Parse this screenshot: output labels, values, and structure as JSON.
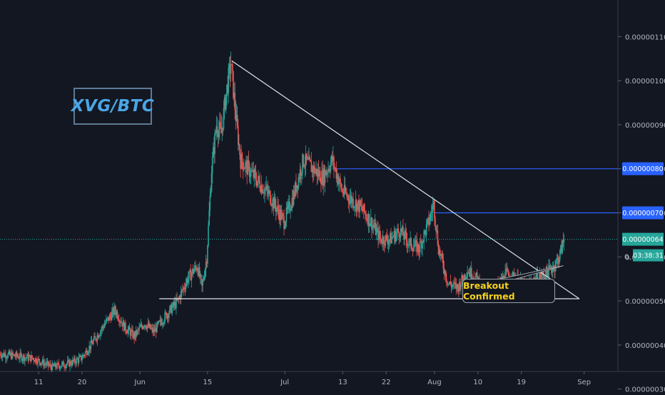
{
  "chart_data": {
    "type": "candlestick",
    "title": "XVG/BTC",
    "y_ticks": [
      "0.00000110",
      "0.00000100",
      "0.00000090",
      "0.00000080",
      "0.00000070",
      "0.00000060",
      "0.00000050",
      "0.00000040",
      "0.00000030"
    ],
    "y_tick_values": [
      1.1,
      1.0,
      0.9,
      0.8,
      0.7,
      0.6,
      0.5,
      0.4,
      0.3
    ],
    "y_unit": "1e-6 BTC",
    "ylim": [
      0.293,
      1.183
    ],
    "x_ticks": [
      "11",
      "20",
      "Jun",
      "15",
      "Jul",
      "13",
      "22",
      "Aug",
      "10",
      "19",
      "Sep"
    ],
    "x_tick_dates": [
      "May 11",
      "May 20",
      "Jun 1",
      "Jun 15",
      "Jul 1",
      "Jul 13",
      "Jul 22",
      "Aug 1",
      "Aug 10",
      "Aug 19",
      "Sep 1"
    ],
    "x_range": [
      "May 3",
      "Sep 8"
    ],
    "price_path": [
      [
        "May 3",
        0.38
      ],
      [
        "May 10",
        0.37
      ],
      [
        "May 14",
        0.35
      ],
      [
        "May 18",
        0.36
      ],
      [
        "May 20",
        0.37
      ],
      [
        "May 22",
        0.4
      ],
      [
        "May 25",
        0.45
      ],
      [
        "May 27",
        0.48
      ],
      [
        "May 29",
        0.44
      ],
      [
        "May 31",
        0.42
      ],
      [
        "Jun 2",
        0.45
      ],
      [
        "Jun 4",
        0.43
      ],
      [
        "Jun 6",
        0.46
      ],
      [
        "Jun 9",
        0.5
      ],
      [
        "Jun 11",
        0.55
      ],
      [
        "Jun 13",
        0.58
      ],
      [
        "Jun 14",
        0.53
      ],
      [
        "Jun 15",
        0.6
      ],
      [
        "Jun 16",
        0.8
      ],
      [
        "Jun 17",
        0.9
      ],
      [
        "Jun 18",
        0.88
      ],
      [
        "Jun 19",
        0.97
      ],
      [
        "Jun 20",
        1.04
      ],
      [
        "Jun 21",
        0.92
      ],
      [
        "Jun 22",
        0.82
      ],
      [
        "Jun 25",
        0.78
      ],
      [
        "Jun 28",
        0.74
      ],
      [
        "Jul 1",
        0.68
      ],
      [
        "Jul 3",
        0.74
      ],
      [
        "Jul 5",
        0.82
      ],
      [
        "Jul 7",
        0.8
      ],
      [
        "Jul 9",
        0.78
      ],
      [
        "Jul 11",
        0.82
      ],
      [
        "Jul 13",
        0.75
      ],
      [
        "Jul 15",
        0.73
      ],
      [
        "Jul 17",
        0.71
      ],
      [
        "Jul 19",
        0.68
      ],
      [
        "Jul 21",
        0.64
      ],
      [
        "Jul 23",
        0.64
      ],
      [
        "Jul 25",
        0.66
      ],
      [
        "Jul 27",
        0.63
      ],
      [
        "Jul 29",
        0.62
      ],
      [
        "Jul 31",
        0.68
      ],
      [
        "Aug 1",
        0.72
      ],
      [
        "Aug 2",
        0.62
      ],
      [
        "Aug 4",
        0.54
      ],
      [
        "Aug 6",
        0.53
      ],
      [
        "Aug 8",
        0.57
      ],
      [
        "Aug 10",
        0.55
      ],
      [
        "Aug 12",
        0.51
      ],
      [
        "Aug 14",
        0.53
      ],
      [
        "Aug 16",
        0.56
      ],
      [
        "Aug 18",
        0.55
      ],
      [
        "Aug 20",
        0.53
      ],
      [
        "Aug 22",
        0.55
      ],
      [
        "Aug 24",
        0.56
      ],
      [
        "Aug 26",
        0.58
      ],
      [
        "Aug 27",
        0.6
      ],
      [
        "Aug 28",
        0.64
      ]
    ],
    "current_price": "0.00000064",
    "current_price_value": 0.64,
    "countdown": "03:38:31",
    "countdown_partial_label": "0.",
    "horizontal_levels": [
      {
        "label": "0.00000080",
        "value": 0.8,
        "from": "Jul 11",
        "color": "#2962ff"
      },
      {
        "label": "0.00000070",
        "value": 0.7,
        "from": "Aug 1",
        "color": "#2962ff"
      }
    ],
    "trendlines": [
      {
        "name": "descending-resistance",
        "from": [
          "Jun 20",
          1.045
        ],
        "to": [
          "Aug 31",
          0.505
        ]
      },
      {
        "name": "horizontal-support",
        "from": [
          "Jun 5",
          0.505
        ],
        "to": [
          "Aug 31",
          0.505
        ]
      }
    ],
    "annotations": [
      {
        "text": "Breakout Confirmed",
        "date": "Aug 28",
        "value": 0.58,
        "color": "#f5d020"
      }
    ],
    "colors": {
      "background": "#131722",
      "up": "#26a69a",
      "down": "#ef5350",
      "grid": "#1e2230",
      "axis_text": "#b2b5be",
      "trendline": "#e0e3eb",
      "last_price": "#26a69a",
      "level_line": "#2962ff"
    },
    "grid": false
  }
}
